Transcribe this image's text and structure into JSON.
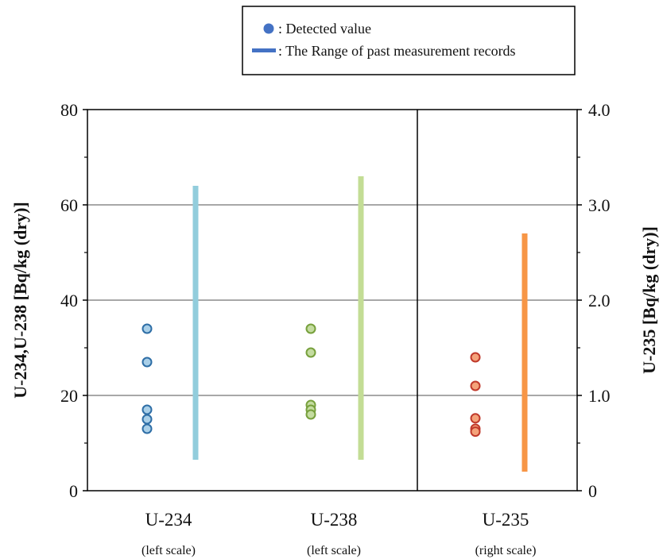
{
  "chart_data": {
    "type": "scatter",
    "legend": {
      "position": "top-center",
      "entries": [
        {
          "label": ": Detected value",
          "marker": "circle",
          "color": "#4472c4"
        },
        {
          "label": ": The Range of past measurement records",
          "marker": "line",
          "color": "#4472c4"
        }
      ]
    },
    "left_axis": {
      "label": "U-234,U-238 [Bq/kg (dry)]",
      "ylim": [
        0,
        80
      ],
      "ticks": [
        "0",
        "20",
        "40",
        "60",
        "80"
      ],
      "tick_values": [
        0,
        20,
        40,
        60,
        80
      ]
    },
    "right_axis": {
      "label": "U-235 [Bq/kg (dry)]",
      "ylim": [
        0,
        4.0
      ],
      "ticks": [
        "0",
        "1.0",
        "2.0",
        "3.0",
        "4.0"
      ],
      "tick_values": [
        0,
        1.0,
        2.0,
        3.0,
        4.0
      ]
    },
    "grid": true,
    "groups": [
      {
        "category": "U-234",
        "scale_note": "(left scale)",
        "axis": "left",
        "point_color": "#a9cfe8",
        "point_edge": "#2e6ea6",
        "range_color": "#92cddc",
        "detected": [
          34,
          27,
          17,
          15,
          13
        ],
        "range": [
          6.5,
          64
        ]
      },
      {
        "category": "U-238",
        "scale_note": "(left scale)",
        "axis": "left",
        "point_color": "#c4dca0",
        "point_edge": "#77a03c",
        "range_color": "#c3dd95",
        "detected": [
          34,
          29,
          18,
          17,
          16
        ],
        "range": [
          6.5,
          66
        ]
      },
      {
        "category": "U-235",
        "scale_note": "(right scale)",
        "axis": "right",
        "point_color": "#f4a27a",
        "point_edge": "#c0392b",
        "range_color": "#f79646",
        "detected": [
          1.4,
          1.1,
          0.76,
          0.65,
          0.62
        ],
        "range": [
          0.2,
          2.7
        ]
      }
    ]
  }
}
